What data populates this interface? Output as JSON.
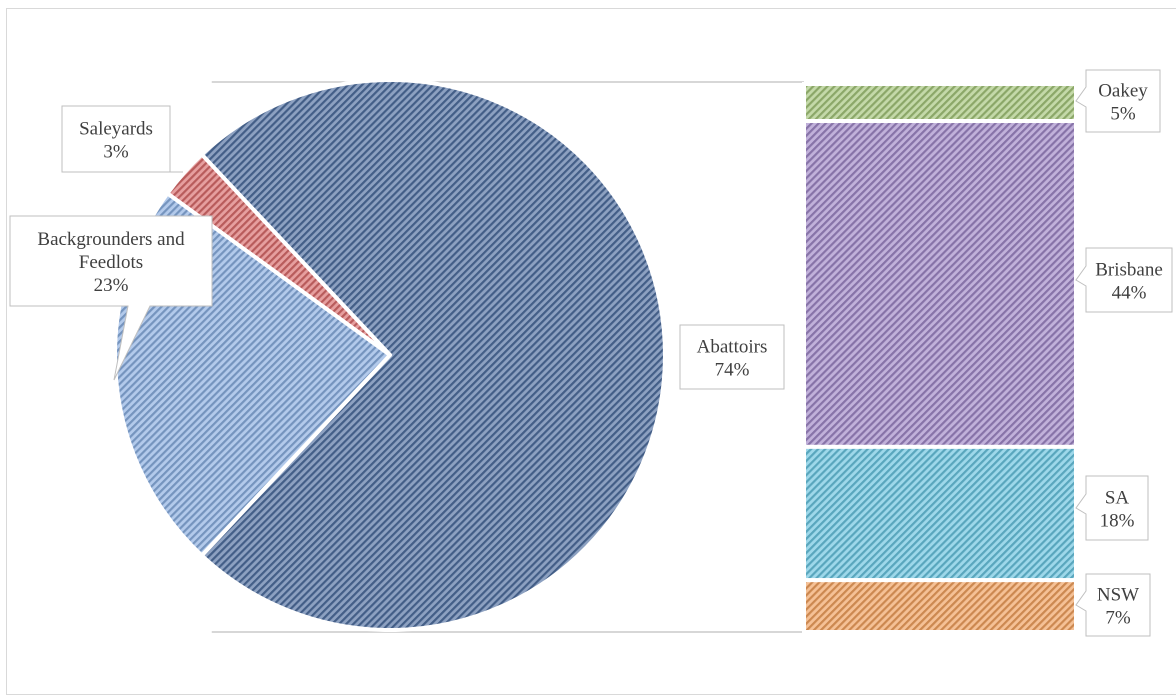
{
  "chart_data": {
    "type": "bar-of-pie",
    "pie": {
      "categories": [
        "Abattoirs",
        "Backgrounders and Feedlots",
        "Saleyards"
      ],
      "values": [
        74,
        23,
        3
      ],
      "labels": [
        "74%",
        "23%",
        "3%"
      ],
      "colors": [
        "#4f6e9f",
        "#8aaee0",
        "#d96b6b"
      ]
    },
    "bar": {
      "categories": [
        "Oakey",
        "Brisbane",
        "SA",
        "NSW"
      ],
      "values": [
        5,
        44,
        18,
        7
      ],
      "labels": [
        "5%",
        "44%",
        "18%",
        "7%"
      ],
      "colors": [
        "#a4c47a",
        "#9f87c6",
        "#69c3de",
        "#f0a05e"
      ]
    },
    "title": "",
    "legend": "none"
  }
}
